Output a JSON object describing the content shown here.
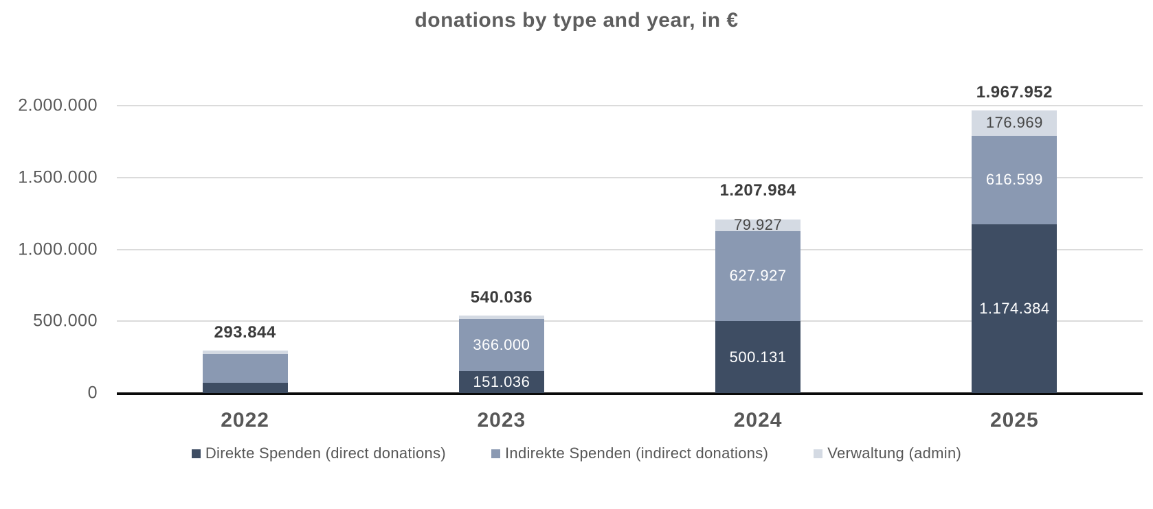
{
  "title": "donations by type and year, in €",
  "styles": {
    "gridline_color": "#dbdbdb",
    "axis_line_color": "#0a0a0a",
    "tick_label_color": "#595959",
    "total_label_color": "#3c3c3c"
  },
  "chart_data": {
    "type": "bar",
    "stacked": true,
    "title": "donations by type and year, in €",
    "categories": [
      "2022",
      "2023",
      "2024",
      "2025"
    ],
    "series": [
      {
        "name": "Direkte Spenden (direct donations)",
        "color": "#3E4D63",
        "label_color": "#ffffff",
        "values": [
          71500,
          151036,
          500131,
          1174384
        ],
        "labels": [
          null,
          "151.036",
          "500.131",
          "1.174.384"
        ]
      },
      {
        "name": "Indirekte Spenden (indirect donations)",
        "color": "#8A99B2",
        "label_color": "#ffffff",
        "values": [
          202000,
          366000,
          627927,
          616599
        ],
        "labels": [
          null,
          "366.000",
          "627.927",
          "616.599"
        ]
      },
      {
        "name": "Verwaltung (admin)",
        "color": "#D4DAE3",
        "label_color": "#474747",
        "values": [
          20344,
          23000,
          79927,
          176969
        ],
        "labels": [
          null,
          null,
          "79.927",
          "176.969"
        ]
      }
    ],
    "totals": [
      293844,
      540036,
      1207984,
      1967952
    ],
    "total_labels": [
      "293.844",
      "540.036",
      "1.207.984",
      "1.967.952"
    ],
    "xlabel": "",
    "ylabel": "",
    "ylim": [
      0,
      2000000
    ],
    "yticks": [
      {
        "value": 0,
        "label": "0"
      },
      {
        "value": 500000,
        "label": "500.000"
      },
      {
        "value": 1000000,
        "label": "1.000.000"
      },
      {
        "value": 1500000,
        "label": "1.500.000"
      },
      {
        "value": 2000000,
        "label": "2.000.000"
      }
    ],
    "grid": true,
    "legend_position": "bottom"
  }
}
